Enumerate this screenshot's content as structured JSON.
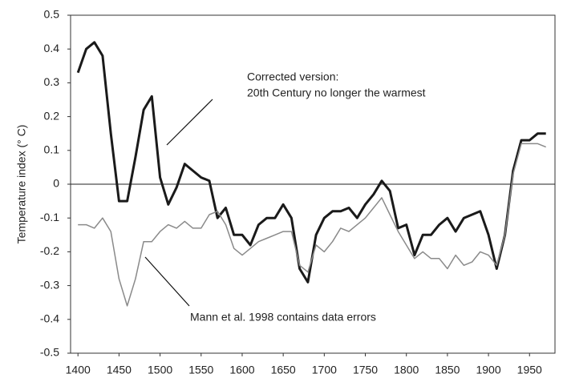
{
  "chart_data": {
    "type": "line",
    "y_label": "Temperature index (° C)",
    "annotations": [
      "Corrected version:",
      "20th Century no longer the warmest",
      "Mann et al. 1998 contains data errors"
    ],
    "x": [
      1400,
      1410,
      1420,
      1430,
      1440,
      1450,
      1460,
      1470,
      1480,
      1490,
      1500,
      1510,
      1520,
      1530,
      1540,
      1550,
      1560,
      1570,
      1580,
      1590,
      1600,
      1610,
      1620,
      1630,
      1640,
      1650,
      1660,
      1670,
      1680,
      1690,
      1700,
      1710,
      1720,
      1730,
      1740,
      1750,
      1760,
      1770,
      1780,
      1790,
      1800,
      1810,
      1820,
      1830,
      1840,
      1850,
      1860,
      1870,
      1880,
      1890,
      1900,
      1910,
      1920,
      1930,
      1940,
      1950,
      1960,
      1970
    ],
    "series": [
      {
        "color": "#1a1a1a",
        "values": [
          0.33,
          0.4,
          0.42,
          0.38,
          0.15,
          -0.05,
          -0.05,
          0.08,
          0.22,
          0.26,
          0.02,
          -0.06,
          -0.01,
          0.06,
          0.04,
          0.02,
          0.01,
          -0.1,
          -0.07,
          -0.15,
          -0.15,
          -0.18,
          -0.12,
          -0.1,
          -0.1,
          -0.06,
          -0.1,
          -0.25,
          -0.29,
          -0.15,
          -0.1,
          -0.08,
          -0.08,
          -0.07,
          -0.1,
          -0.06,
          -0.03,
          0.01,
          -0.02,
          -0.13,
          -0.12,
          -0.21,
          -0.15,
          -0.15,
          -0.12,
          -0.1,
          -0.14,
          -0.1,
          -0.09,
          -0.08,
          -0.15,
          -0.25,
          -0.15,
          0.04,
          0.13,
          0.13,
          0.15,
          0.15
        ]
      },
      {
        "color": "#8a8a8a",
        "values": [
          -0.12,
          -0.12,
          -0.13,
          -0.1,
          -0.14,
          -0.28,
          -0.36,
          -0.28,
          -0.17,
          -0.17,
          -0.14,
          -0.12,
          -0.13,
          -0.11,
          -0.13,
          -0.13,
          -0.09,
          -0.08,
          -0.12,
          -0.19,
          -0.21,
          -0.19,
          -0.17,
          -0.16,
          -0.15,
          -0.14,
          -0.14,
          -0.24,
          -0.26,
          -0.18,
          -0.2,
          -0.17,
          -0.13,
          -0.14,
          -0.12,
          -0.1,
          -0.07,
          -0.04,
          -0.09,
          -0.14,
          -0.18,
          -0.22,
          -0.2,
          -0.22,
          -0.22,
          -0.25,
          -0.21,
          -0.24,
          -0.23,
          -0.2,
          -0.21,
          -0.24,
          -0.15,
          0.03,
          0.12,
          0.12,
          0.12,
          0.11
        ]
      }
    ],
    "xlim": [
      1391,
      1981
    ],
    "ylim": [
      -0.5,
      0.5
    ],
    "xticks": [
      1400,
      1450,
      1500,
      1550,
      1600,
      1650,
      1700,
      1750,
      1800,
      1850,
      1900,
      1950
    ],
    "yticks": [
      -0.5,
      -0.4,
      -0.3,
      -0.2,
      -0.1,
      0,
      0.1,
      0.2,
      0.3,
      0.4,
      0.5
    ]
  }
}
